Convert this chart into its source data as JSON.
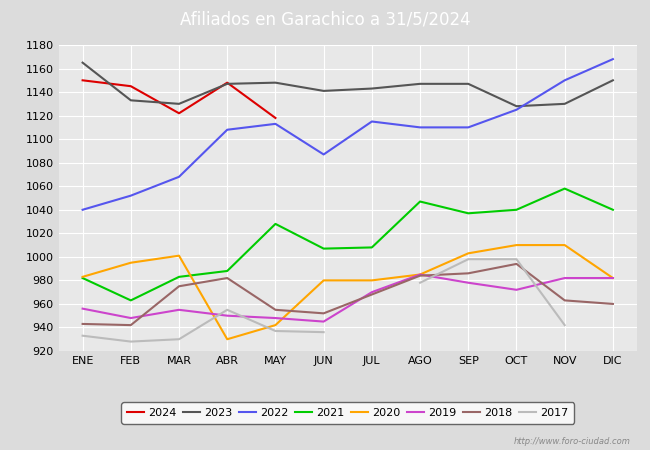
{
  "title": "Afiliados en Garachico a 31/5/2024",
  "title_color": "white",
  "title_bg_color": "#4472C4",
  "background_color": "#DCDCDC",
  "plot_bg_color": "#E8E8E8",
  "months": [
    "ENE",
    "FEB",
    "MAR",
    "ABR",
    "MAY",
    "JUN",
    "JUL",
    "AGO",
    "SEP",
    "OCT",
    "NOV",
    "DIC"
  ],
  "ylim": [
    920,
    1180
  ],
  "yticks": [
    920,
    940,
    960,
    980,
    1000,
    1020,
    1040,
    1060,
    1080,
    1100,
    1120,
    1140,
    1160,
    1180
  ],
  "series": {
    "2024": {
      "color": "#DD0000",
      "data": [
        1150,
        1145,
        1122,
        1148,
        1118,
        null,
        null,
        null,
        null,
        null,
        null,
        null
      ]
    },
    "2023": {
      "color": "#555555",
      "data": [
        1165,
        1133,
        1130,
        1147,
        1148,
        1141,
        1143,
        1147,
        1147,
        1128,
        1130,
        1150
      ]
    },
    "2022": {
      "color": "#5555EE",
      "data": [
        1040,
        1052,
        1068,
        1108,
        1113,
        1087,
        1115,
        1110,
        1110,
        1125,
        1150,
        1168
      ]
    },
    "2021": {
      "color": "#00CC00",
      "data": [
        982,
        963,
        983,
        988,
        1028,
        1007,
        1008,
        1047,
        1037,
        1040,
        1058,
        1040
      ]
    },
    "2020": {
      "color": "#FFA500",
      "data": [
        983,
        995,
        1001,
        930,
        942,
        980,
        980,
        985,
        1003,
        1010,
        1010,
        982
      ]
    },
    "2019": {
      "color": "#CC44CC",
      "data": [
        956,
        948,
        955,
        950,
        948,
        945,
        970,
        985,
        978,
        972,
        982,
        982
      ]
    },
    "2018": {
      "color": "#996666",
      "data": [
        943,
        942,
        975,
        982,
        955,
        952,
        968,
        984,
        986,
        994,
        963,
        960
      ]
    },
    "2017": {
      "color": "#BBBBBB",
      "data": [
        933,
        928,
        930,
        955,
        937,
        936,
        null,
        978,
        998,
        998,
        942,
        null
      ]
    }
  },
  "watermark": "http://www.foro-ciudad.com",
  "grid_color": "white"
}
